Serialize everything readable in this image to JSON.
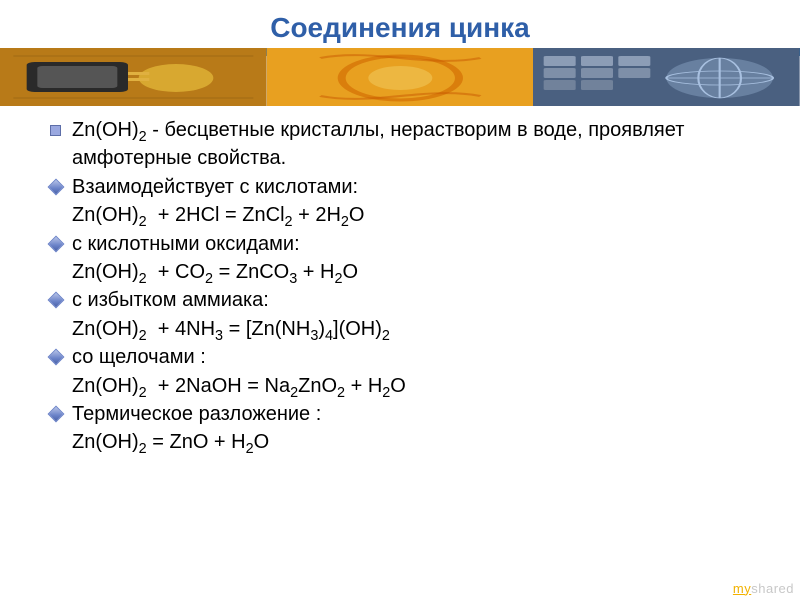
{
  "title": {
    "text": "Соединения цинка",
    "color": "#2f5fa8",
    "fontsize": 28
  },
  "band": {
    "stripe_colors": [
      "#1e64a0",
      "#3a86c8"
    ],
    "images": [
      {
        "name": "circuit-chip-photo",
        "bg": "#c88a1a",
        "accent": "#2a2a2a"
      },
      {
        "name": "industrial-photo",
        "bg": "#e8a020",
        "accent": "#d06800"
      },
      {
        "name": "keyboard-globe-photo",
        "bg": "#5a7090",
        "accent": "#3a5070"
      }
    ]
  },
  "content": {
    "text_color": "#000000",
    "bullet_main_color": "#9aa8e0",
    "bullet_sub_color": "#6a82c8",
    "fontsize": 20,
    "lines": [
      {
        "bullet": "sq",
        "html": "Zn(OH)<sub>2</sub> - бесцветные кристаллы, нерастворим в воде, проявляет амфотерные свойства."
      },
      {
        "bullet": "di",
        "html": "Взаимодействует с кислотами:"
      },
      {
        "bullet": "",
        "html": "Zn(OH)<sub>2</sub> &nbsp;+ 2HCl = ZnCl<sub>2</sub> + 2H<sub>2</sub>O"
      },
      {
        "bullet": "di",
        "html": "с кислотными оксидами:"
      },
      {
        "bullet": "",
        "html": "Zn(OH)<sub>2</sub> &nbsp;+ CO<sub>2</sub> = ZnCO<sub>3</sub> + H<sub>2</sub>O"
      },
      {
        "bullet": "di",
        "html": "с избытком аммиака:"
      },
      {
        "bullet": "",
        "html": "Zn(OH)<sub>2</sub> &nbsp;+ 4NH<sub>3</sub> = [Zn(NH<sub>3</sub>)<sub>4</sub>](OH)<sub>2</sub>"
      },
      {
        "bullet": "di",
        "html": "со щелочами :"
      },
      {
        "bullet": "",
        "html": "Zn(OH)<sub>2</sub> &nbsp;+ 2NaOH = Na<sub>2</sub>ZnO<sub>2</sub> + H<sub>2</sub>O"
      },
      {
        "bullet": "di",
        "html": "Термическое разложение :"
      },
      {
        "bullet": "",
        "html": "Zn(OH)<sub>2</sub> = ZnO + H<sub>2</sub>O"
      }
    ]
  },
  "watermark": {
    "prefix": "my",
    "suffix": "shared"
  }
}
